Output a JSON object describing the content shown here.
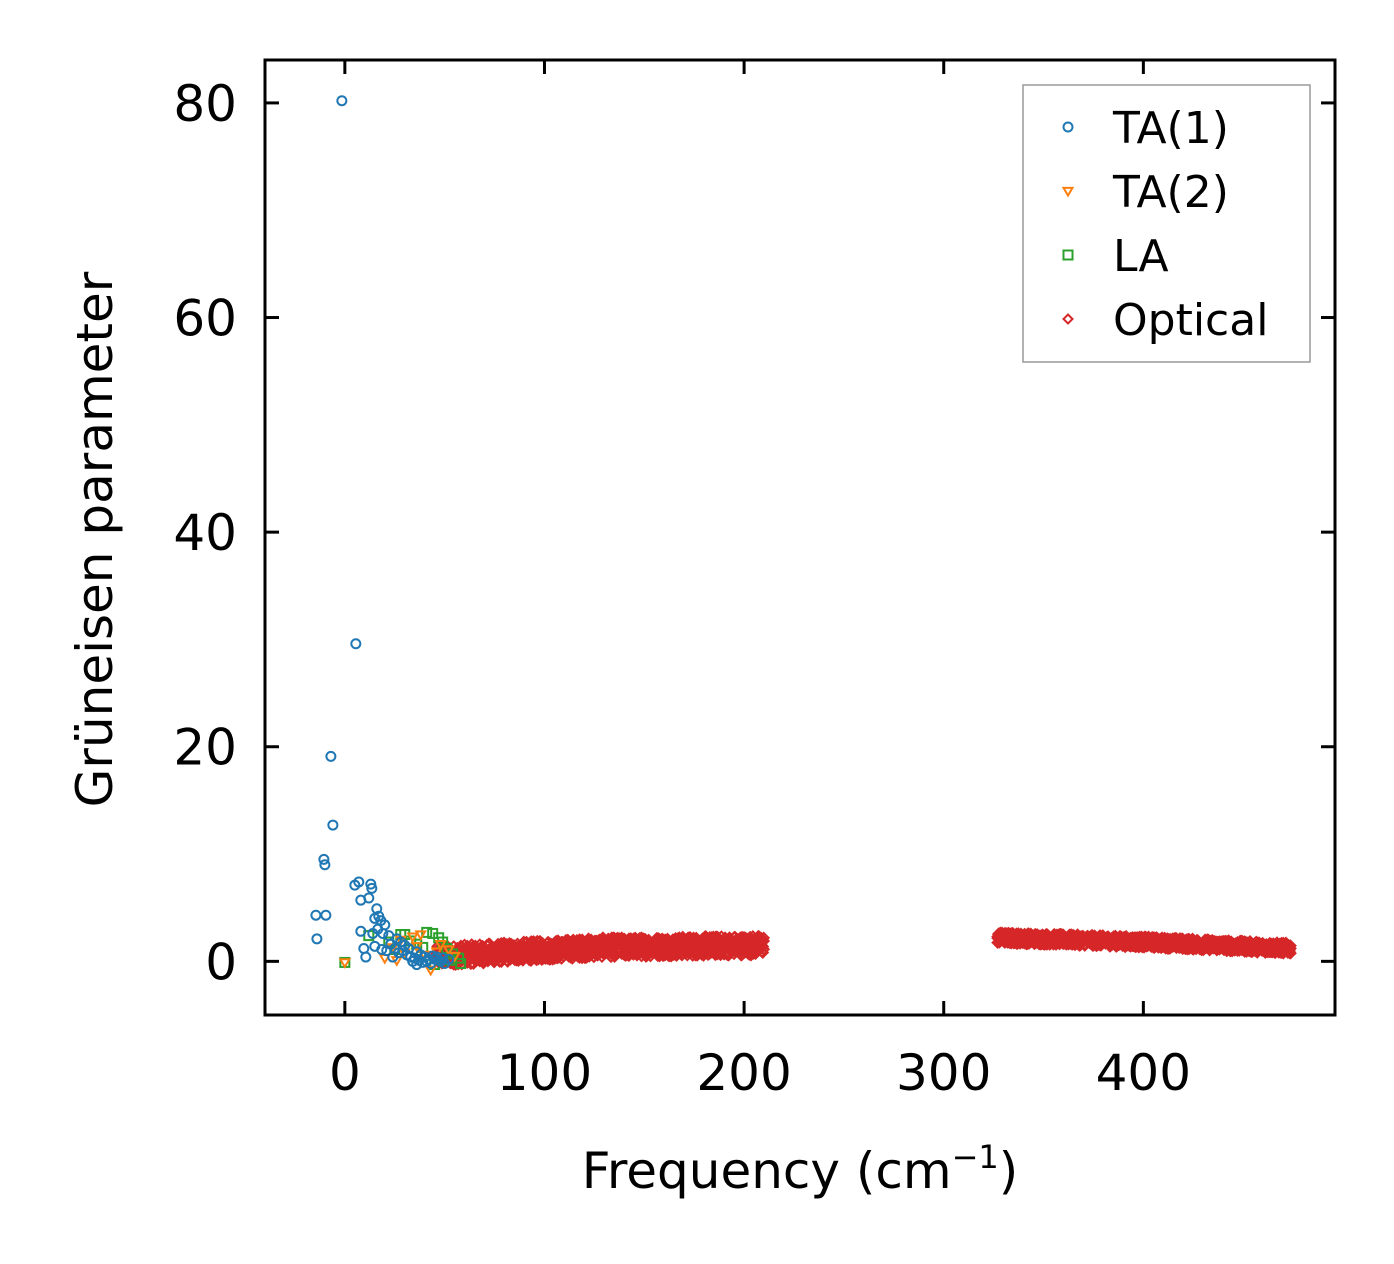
{
  "chart_data": {
    "type": "scatter",
    "title": "",
    "xlabel": "Frequency (cm",
    "xlabel_sup": "−1",
    "xlabel_close": ")",
    "ylabel": "Grüneisen parameter",
    "xlim": [
      -40,
      496
    ],
    "ylim": [
      -5,
      84
    ],
    "xticks": [
      0,
      100,
      200,
      300,
      400
    ],
    "xtick_labels": [
      "0",
      "100",
      "200",
      "300",
      "400"
    ],
    "yticks": [
      0,
      20,
      40,
      60,
      80
    ],
    "ytick_labels": [
      "0",
      "20",
      "40",
      "60",
      "80"
    ],
    "grid": false,
    "legend_position": "top-right",
    "series": [
      {
        "name": "TA(1)",
        "marker": "circle",
        "color": "#1f77b4",
        "points": [
          [
            -1.5,
            80.2
          ],
          [
            5.5,
            29.6
          ],
          [
            -7,
            19.1
          ],
          [
            -6,
            12.7
          ],
          [
            -10.5,
            9.5
          ],
          [
            -10,
            9.0
          ],
          [
            -14.5,
            4.3
          ],
          [
            -9.5,
            4.3
          ],
          [
            -14,
            2.1
          ],
          [
            5,
            7.1
          ],
          [
            7,
            7.4
          ],
          [
            13,
            7.2
          ],
          [
            13.5,
            6.8
          ],
          [
            8,
            5.7
          ],
          [
            12,
            5.9
          ],
          [
            16,
            4.9
          ],
          [
            15,
            4.0
          ],
          [
            17,
            4.2
          ],
          [
            18,
            3.8
          ],
          [
            20,
            3.4
          ],
          [
            16.5,
            3.0
          ],
          [
            19,
            2.6
          ],
          [
            22,
            2.4
          ],
          [
            8,
            2.8
          ],
          [
            14,
            2.6
          ],
          [
            9.5,
            1.2
          ],
          [
            10.5,
            0.4
          ],
          [
            15,
            1.4
          ],
          [
            18.5,
            1.1
          ],
          [
            21,
            1.0
          ],
          [
            23,
            1.6
          ],
          [
            25,
            1.2
          ],
          [
            27,
            0.8
          ],
          [
            29,
            1.0
          ],
          [
            31,
            0.6
          ],
          [
            33,
            0.4
          ],
          [
            35,
            0.3
          ],
          [
            37,
            0.1
          ],
          [
            39,
            -0.1
          ],
          [
            41,
            0.0
          ],
          [
            43,
            -0.2
          ],
          [
            45,
            0.2
          ],
          [
            47,
            0.1
          ],
          [
            49,
            0.3
          ],
          [
            52,
            0.2
          ],
          [
            26,
            2.1
          ],
          [
            28,
            1.8
          ],
          [
            30,
            1.5
          ],
          [
            24,
            0.4
          ],
          [
            32,
            1.2
          ],
          [
            36,
            0.9
          ],
          [
            38,
            0.6
          ],
          [
            40,
            0.4
          ],
          [
            42,
            0.2
          ],
          [
            44,
            0.5
          ],
          [
            46,
            0.4
          ],
          [
            48,
            0.0
          ],
          [
            50,
            -0.2
          ],
          [
            34,
            0.0
          ],
          [
            36,
            -0.3
          ]
        ]
      },
      {
        "name": "TA(2)",
        "marker": "triangle-down",
        "color": "#ff7f0e",
        "points": [
          [
            0,
            -0.1
          ],
          [
            20,
            0.3
          ],
          [
            24,
            1.3
          ],
          [
            28,
            2.0
          ],
          [
            30,
            0.8
          ],
          [
            34,
            2.3
          ],
          [
            36,
            1.4
          ],
          [
            40,
            0.6
          ],
          [
            43,
            -0.8
          ],
          [
            46,
            0.9
          ],
          [
            48,
            1.6
          ],
          [
            52,
            1.1
          ],
          [
            55,
            0.5
          ],
          [
            38,
            2.5
          ],
          [
            26,
            0.1
          ]
        ]
      },
      {
        "name": "LA",
        "marker": "square",
        "color": "#2ca02c",
        "points": [
          [
            0,
            -0.1
          ],
          [
            12,
            2.4
          ],
          [
            28,
            2.5
          ],
          [
            30,
            2.5
          ],
          [
            41,
            2.7
          ],
          [
            44,
            2.6
          ],
          [
            47,
            2.2
          ],
          [
            33,
            1.9
          ],
          [
            36,
            1.6
          ],
          [
            39,
            1.3
          ],
          [
            49,
            1.8
          ],
          [
            51,
            1.2
          ],
          [
            54,
            0.7
          ],
          [
            57,
            0.3
          ],
          [
            58,
            -0.2
          ],
          [
            53,
            0.1
          ],
          [
            45,
            -0.3
          ],
          [
            25,
            1.1
          ],
          [
            22,
            1.8
          ]
        ]
      },
      {
        "name": "Optical",
        "marker": "diamond",
        "color": "#d62728",
        "bands": [
          {
            "x_start": 46,
            "x_end": 210,
            "y_start": 0.5,
            "y_mid": 1.3,
            "y_end": 1.5,
            "spread": 0.9
          },
          {
            "x_start": 327,
            "x_end": 474,
            "y_start": 2.2,
            "y_mid": 1.8,
            "y_end": 1.2,
            "spread": 0.5
          }
        ]
      }
    ]
  }
}
